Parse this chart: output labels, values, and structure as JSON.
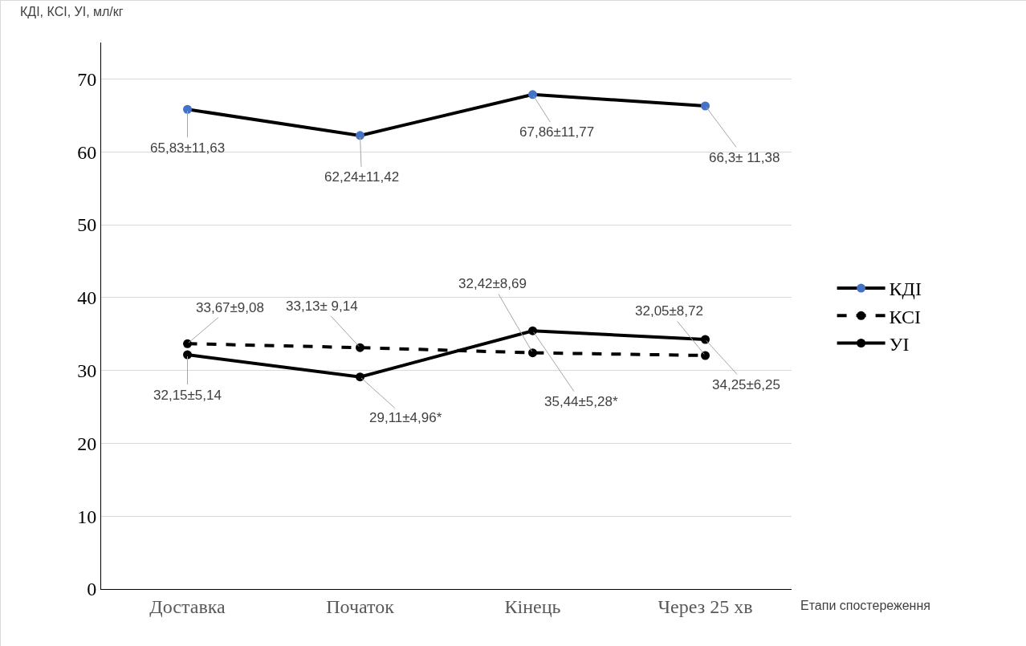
{
  "chart_data": {
    "type": "line",
    "ylabel": "КДІ, КСІ, УІ, мл/кг",
    "xlabel": "Етапи спостереження",
    "categories": [
      "Доставка",
      "Початок",
      "Кінець",
      "Через 25 хв"
    ],
    "series": [
      {
        "name": "КДІ",
        "color": "#000000",
        "colors": [
          "#4472c4",
          "#4472c4",
          "#4472c4",
          "#4472c4"
        ],
        "line_style": "solid",
        "values": [
          65.83,
          62.24,
          67.86,
          66.3
        ],
        "value_labels": [
          "65,83±11,63",
          "62,24±11,42",
          "67,86±11,77",
          "66,3± 11,38"
        ]
      },
      {
        "name": "КСІ",
        "color": "#000000",
        "line_style": "dashed",
        "values": [
          33.67,
          33.13,
          32.42,
          32.05
        ],
        "value_labels": [
          "33,67±9,08",
          "33,13± 9,14",
          "32,42±8,69",
          "32,05±8,72"
        ]
      },
      {
        "name": "УІ",
        "color": "#000000",
        "line_style": "solid",
        "values": [
          32.15,
          29.11,
          35.44,
          34.25
        ],
        "value_labels": [
          "32,15±5,14",
          "29,11±4,96*",
          "35,44±5,28*",
          "34,25±6,25"
        ]
      }
    ],
    "ylim": [
      0,
      75
    ],
    "yticks": [
      0,
      10,
      20,
      30,
      40,
      50,
      60,
      70
    ],
    "grid": "y",
    "legend": "right",
    "marker": "circle"
  }
}
